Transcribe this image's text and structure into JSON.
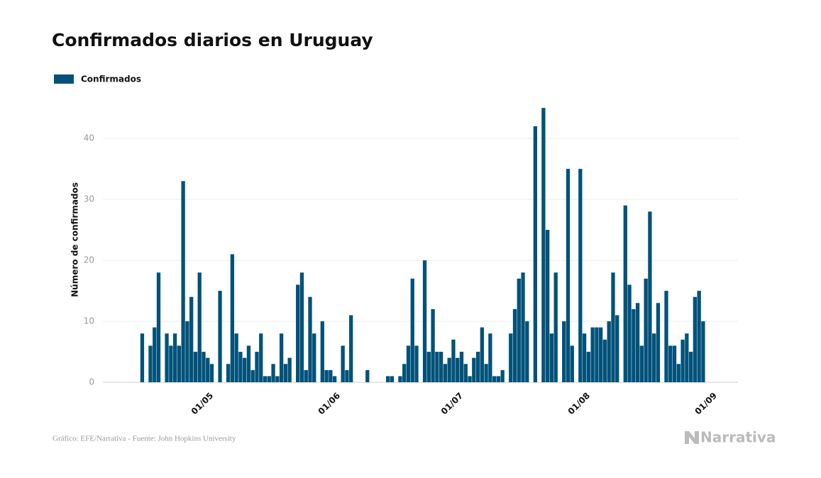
{
  "chart_data": {
    "type": "bar",
    "title": "Confirmados diarios en Uruguay",
    "y_label": "Número de confirmados",
    "source": "Gráfico: EFE/Narrativa - Fuente: John Hopkins University",
    "brand": "Narrativa",
    "categories": [
      null,
      null,
      null,
      null,
      null,
      null,
      null,
      null,
      null,
      null,
      null,
      null,
      null,
      null,
      null,
      null,
      null,
      null,
      "01/05",
      null,
      null,
      null,
      null,
      null,
      null,
      null,
      null,
      null,
      null,
      null,
      null,
      null,
      null,
      null,
      null,
      null,
      null,
      null,
      null,
      null,
      null,
      null,
      null,
      null,
      null,
      null,
      null,
      null,
      null,
      "01/06",
      null,
      null,
      null,
      null,
      null,
      null,
      null,
      null,
      null,
      null,
      null,
      null,
      null,
      null,
      null,
      null,
      null,
      null,
      null,
      null,
      null,
      null,
      null,
      null,
      null,
      null,
      null,
      null,
      null,
      "01/07",
      null,
      null,
      null,
      null,
      null,
      null,
      null,
      null,
      null,
      null,
      null,
      null,
      null,
      null,
      null,
      null,
      null,
      null,
      null,
      null,
      null,
      null,
      null,
      null,
      null,
      null,
      null,
      null,
      null,
      null,
      "01/08",
      null,
      null,
      null,
      null,
      null,
      null,
      null,
      null,
      null,
      null,
      null,
      null,
      null,
      null,
      null,
      null,
      null,
      null,
      null,
      null,
      null,
      null,
      null,
      null,
      null,
      null,
      null,
      null,
      null,
      null,
      "01/09"
    ],
    "series": [
      {
        "name": "Confirmados",
        "color": "#00527a",
        "values": [
          0,
          0,
          8,
          0,
          6,
          9,
          18,
          0,
          8,
          6,
          8,
          6,
          33,
          10,
          14,
          5,
          18,
          5,
          4,
          3,
          0,
          15,
          0,
          3,
          21,
          8,
          5,
          4,
          6,
          2,
          5,
          8,
          1,
          1,
          3,
          1,
          8,
          3,
          4,
          0,
          16,
          18,
          2,
          14,
          8,
          0,
          10,
          2,
          2,
          1,
          0,
          6,
          2,
          11,
          0,
          0,
          0,
          2,
          0,
          0,
          0,
          0,
          1,
          1,
          0,
          1,
          3,
          6,
          17,
          6,
          0,
          20,
          5,
          12,
          5,
          5,
          3,
          4,
          7,
          4,
          5,
          3,
          1,
          4,
          5,
          9,
          3,
          8,
          1,
          1,
          2,
          0,
          8,
          12,
          17,
          18,
          10,
          0,
          42,
          0,
          45,
          25,
          8,
          18,
          0,
          10,
          35,
          6,
          0,
          35,
          8,
          5,
          9,
          9,
          9,
          7,
          10,
          18,
          11,
          0,
          29,
          16,
          12,
          13,
          6,
          17,
          28,
          8,
          13,
          0,
          15,
          6,
          6,
          3,
          7,
          8,
          5,
          14,
          15,
          10,
          0,
          0
        ]
      }
    ],
    "ylim": [
      0,
      47
    ],
    "yticks": [
      0,
      10,
      20,
      30,
      40
    ],
    "grid": true,
    "legend": "top-left"
  }
}
